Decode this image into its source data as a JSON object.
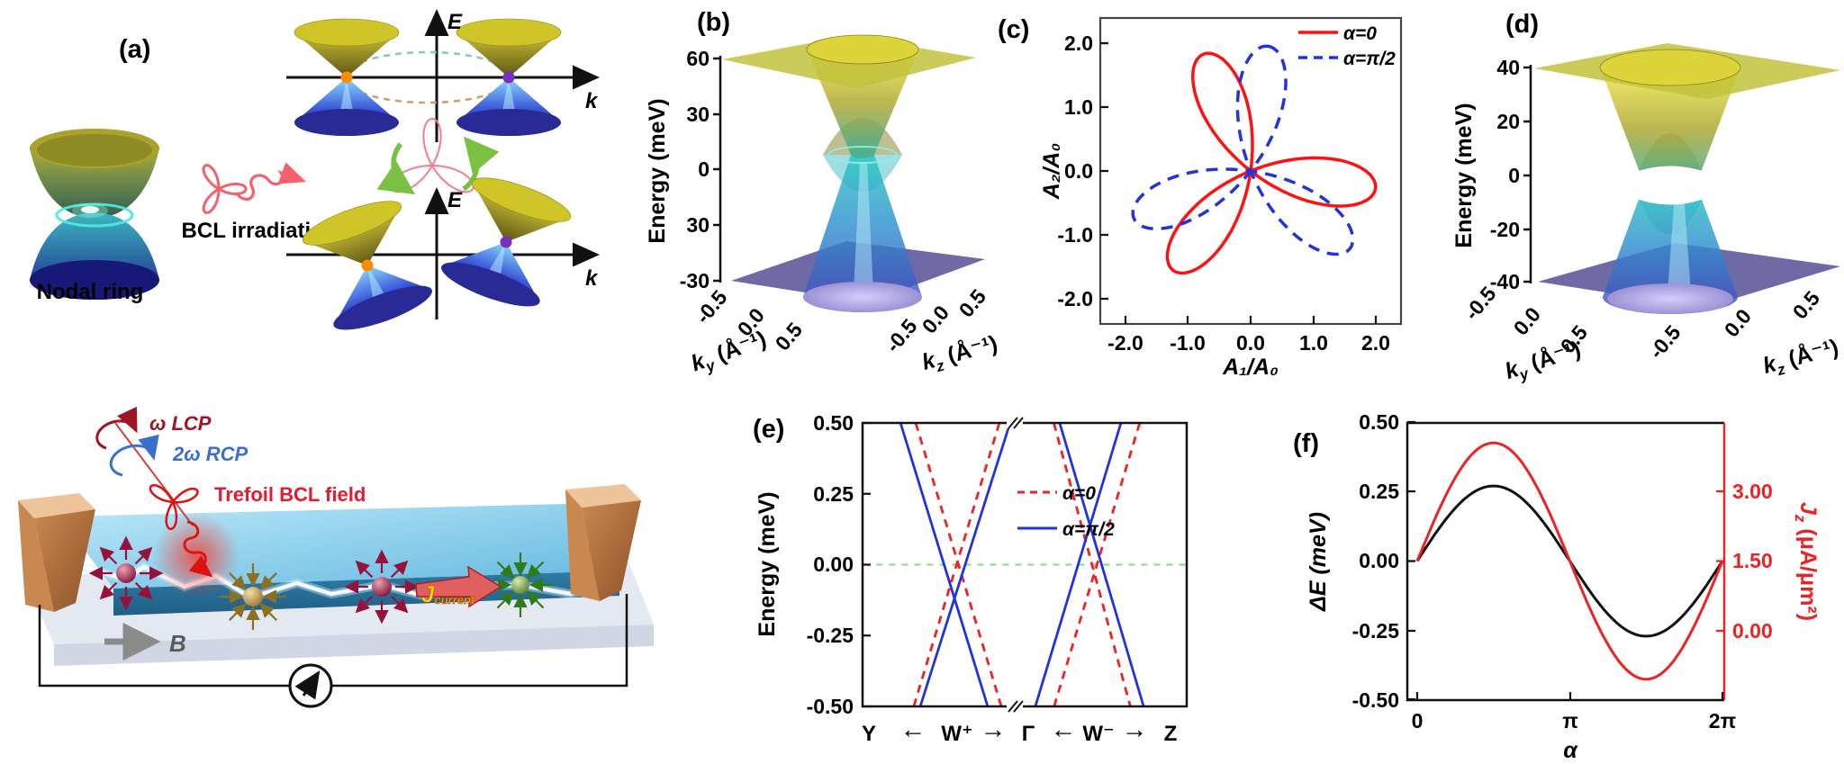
{
  "figure": {
    "type": "multi-panel scientific figure",
    "background": "#ffffff"
  },
  "panel_a": {
    "label": "(a)",
    "nodal_ring_caption": "Nodal ring",
    "bcl_caption": "BCL irradiation",
    "axis_E": "E",
    "axis_k": "k",
    "device": {
      "lcp_label": "ω LCP",
      "rcp_label": "2ω RCP",
      "trefoil_label": "Trefoil BCL field",
      "b_field_label": "B",
      "current_label_J": "J",
      "current_label_sub": "current"
    }
  },
  "panel_b": {
    "label": "(b)",
    "ylabel": "Energy (meV)",
    "yticks": [
      "60",
      "30",
      "0",
      "30",
      "-30"
    ],
    "ky_label": {
      "base": "k",
      "sub": "y",
      "unit": " (Å⁻¹)"
    },
    "ky_ticks": [
      "-0.5",
      "0.0",
      "0.5"
    ],
    "kz_label": {
      "base": "k",
      "sub": "z",
      "unit": " (Å⁻¹)"
    },
    "kz_ticks": [
      "-0.5",
      "0.0",
      "0.5"
    ]
  },
  "panel_c": {
    "label": "(c)",
    "xlabel": "A₁/A₀",
    "ylabel": "A₂/A₀",
    "xticks": [
      "-2.0",
      "-1.0",
      "0.0",
      "1.0",
      "2.0"
    ],
    "yticks": [
      "2.0",
      "1.0",
      "0.0",
      "-1.0",
      "-2.0"
    ],
    "legend": [
      {
        "label": "α=0",
        "color": "#ff1111",
        "style": "solid"
      },
      {
        "label": "α=π/2",
        "color": "#2233dd",
        "style": "dashed"
      }
    ]
  },
  "panel_d": {
    "label": "(d)",
    "ylabel": "Energy (meV)",
    "yticks": [
      "40",
      "20",
      "0",
      "-20",
      "-40"
    ],
    "ky_label": {
      "base": "k",
      "sub": "y",
      "unit": " (Å⁻¹)"
    },
    "ky_ticks": [
      "-0.5",
      "0.0",
      "0.5"
    ],
    "kz_label": {
      "base": "k",
      "sub": "z",
      "unit": " (Å⁻¹)"
    },
    "kz_ticks": [
      "-0.5",
      "0.0",
      "0.5"
    ]
  },
  "panel_e": {
    "label": "(e)",
    "ylabel": "Energy (meV)",
    "yticks": [
      "0.50",
      "0.25",
      "0.00",
      "-0.25",
      "-0.50"
    ],
    "kpath": [
      "Y",
      "←",
      "W⁺",
      "→",
      "Γ",
      "←",
      "W⁻",
      "→",
      "Z"
    ],
    "legend": [
      {
        "label": "α=0",
        "color": "#ee2222",
        "style": "dashed"
      },
      {
        "label": "α=π/2",
        "color": "#2233dd",
        "style": "solid"
      }
    ]
  },
  "panel_f": {
    "label": "(f)",
    "ylabel_left": "ΔE (meV)",
    "ylabel_right": {
      "base": "J",
      "sub": "z",
      "unit": " (μA/μm²)"
    },
    "yticks_left": [
      "0.50",
      "0.25",
      "0.00",
      "-0.25",
      "-0.50"
    ],
    "yticks_right": [
      "3.00",
      "1.50",
      "0.00"
    ],
    "xticks": [
      "0",
      "π",
      "2π"
    ],
    "xlabel": "α"
  },
  "chart_data": [
    {
      "id": "b",
      "type": "surface3d",
      "zlabel": "Energy (meV)",
      "z_ticks_shown": [
        "60",
        "30",
        "0",
        "30",
        "-30"
      ],
      "z_range": [
        -30,
        60
      ],
      "ky_axis": {
        "label": "k_y (Å⁻¹)",
        "ticks": [
          -0.5,
          0.0,
          0.5
        ]
      },
      "kz_axis": {
        "label": "k_z (Å⁻¹)",
        "ticks": [
          -0.5,
          0.0,
          0.5
        ]
      },
      "shape": "hourglass Dirac/Weyl cone pair touching near E=0 with inner paraboloid bands and cyan nodal-ring line; flat olive plane near top (E≈60) and flat purple plane at bottom (E≈-30)"
    },
    {
      "id": "c",
      "type": "parametric",
      "xlabel": "A₁/A₀",
      "ylabel": "A₂/A₀",
      "xlim": [
        -2.4,
        2.4
      ],
      "ylim": [
        -2.4,
        2.4
      ],
      "curve": "trefoil BCL field A(t)/A₀ = [cos t + cos(2t), sin t − sin(2t)], max |A|/A₀ = 2",
      "series": [
        {
          "name": "α=0",
          "color": "#ff1111",
          "style": "solid",
          "rotation_deg": 112,
          "max_amplitude": 2.0
        },
        {
          "name": "α=π/2",
          "color": "#2233dd",
          "style": "dashed",
          "rotation_deg": 82,
          "max_amplitude": 2.0
        }
      ]
    },
    {
      "id": "d",
      "type": "surface3d",
      "zlabel": "Energy (meV)",
      "z_ticks_shown": [
        "40",
        "20",
        "0",
        "-20",
        "-40"
      ],
      "z_range": [
        -40,
        40
      ],
      "ky_axis": {
        "label": "k_y (Å⁻¹)",
        "ticks": [
          -0.5,
          0.0,
          0.5
        ]
      },
      "kz_axis": {
        "label": "k_z (Å⁻¹)",
        "ticks": [
          -0.5,
          0.0,
          0.5
        ]
      },
      "shape": "tilted cone pair with white lens-shaped gap around E=0 (gapped nodal ring, two touching points); olive plane near top (E≈40) and purple plane at bottom (E≈-40)"
    },
    {
      "id": "e",
      "type": "line",
      "ylabel": "Energy (meV)",
      "ylim": [
        -0.5,
        0.5
      ],
      "x_path": [
        "Y",
        "W⁺",
        "Γ",
        "W⁻",
        "Z"
      ],
      "axis_break_at": "Γ",
      "zero_line": {
        "color": "#7fdc7f",
        "style": "dashed",
        "E_meV": 0
      },
      "series": [
        {
          "name": "α=0",
          "color": "#ee2222",
          "style": "dashed",
          "crossings": [
            {
              "at": "W⁺",
              "E_meV": 0.0
            },
            {
              "at": "W⁻",
              "E_meV": 0.0
            }
          ]
        },
        {
          "name": "α=π/2",
          "color": "#2233dd",
          "style": "solid",
          "crossings": [
            {
              "at": "W⁺",
              "E_meV": -0.13
            },
            {
              "at": "W⁻",
              "E_meV": 0.13
            }
          ]
        }
      ],
      "segments": [
        {
          "color": "#ee2222",
          "dash": true,
          "pts": [
            [
              0.164,
              0.5
            ],
            [
              0.428,
              -0.5
            ]
          ]
        },
        {
          "color": "#ee2222",
          "dash": true,
          "pts": [
            [
              0.422,
              0.5
            ],
            [
              0.158,
              -0.5
            ]
          ]
        },
        {
          "color": "#ee2222",
          "dash": true,
          "pts": [
            [
              0.59,
              0.5
            ],
            [
              0.826,
              -0.5
            ]
          ]
        },
        {
          "color": "#ee2222",
          "dash": true,
          "pts": [
            [
              0.855,
              0.5
            ],
            [
              0.591,
              -0.5
            ]
          ]
        },
        {
          "color": "#2233dd",
          "dash": false,
          "pts": [
            [
              0.117,
              0.5
            ],
            [
              0.386,
              -0.5
            ]
          ]
        },
        {
          "color": "#2233dd",
          "dash": false,
          "pts": [
            [
              0.455,
              0.5
            ],
            [
              0.178,
              -0.5
            ]
          ]
        },
        {
          "color": "#2233dd",
          "dash": false,
          "pts": [
            [
              0.608,
              0.5
            ],
            [
              0.867,
              -0.5
            ]
          ]
        },
        {
          "color": "#2233dd",
          "dash": false,
          "pts": [
            [
              0.797,
              0.5
            ],
            [
              0.533,
              -0.5
            ]
          ]
        }
      ]
    },
    {
      "id": "f",
      "type": "line",
      "xlabel": "α",
      "x_range_rad": [
        0,
        6.2832
      ],
      "x_ticks": [
        "0",
        "π",
        "2π"
      ],
      "left_axis": {
        "label": "ΔE (meV)",
        "ylim": [
          -0.5,
          0.5
        ],
        "ticks": [
          0.5,
          0.25,
          0.0,
          -0.25,
          -0.5
        ]
      },
      "right_axis": {
        "label": "J_z (μA/μm²)",
        "ticks": [
          3.0,
          1.5,
          0.0
        ]
      },
      "series": [
        {
          "name": "ΔE",
          "axis": "left",
          "color": "#111111",
          "model": "offset + amplitude·sin(α)",
          "amplitude": 0.27,
          "offset": 0.0
        },
        {
          "name": "J_z",
          "axis": "right",
          "color": "#ee2222",
          "model": "offset + amplitude·sin(α)",
          "amplitude": 2.55,
          "offset": 1.5
        }
      ]
    }
  ]
}
